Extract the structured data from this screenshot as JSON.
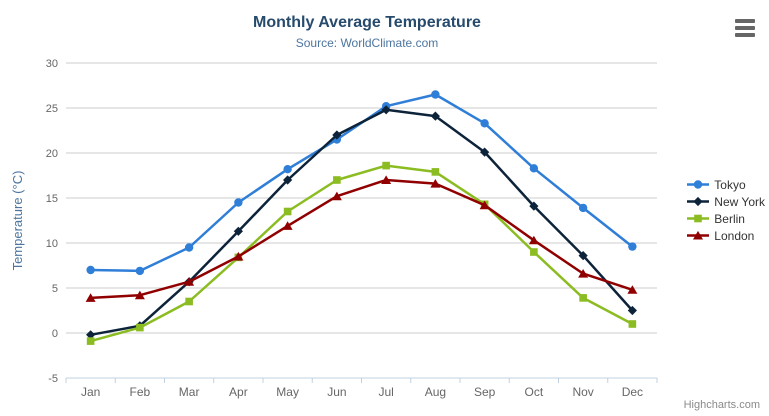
{
  "chart_data": {
    "type": "line",
    "title": "Monthly Average Temperature",
    "subtitle": "Source: WorldClimate.com",
    "xlabel": "",
    "ylabel": "Temperature (°C)",
    "ylim": [
      -5,
      30
    ],
    "tick_interval": 5,
    "grid": true,
    "legend_position": "right",
    "categories": [
      "Jan",
      "Feb",
      "Mar",
      "Apr",
      "May",
      "Jun",
      "Jul",
      "Aug",
      "Sep",
      "Oct",
      "Nov",
      "Dec"
    ],
    "series": [
      {
        "name": "Tokyo",
        "color": "#2f7ed8",
        "marker": "circle",
        "values": [
          7.0,
          6.9,
          9.5,
          14.5,
          18.2,
          21.5,
          25.2,
          26.5,
          23.3,
          18.3,
          13.9,
          9.6
        ]
      },
      {
        "name": "New York",
        "color": "#0d233a",
        "marker": "diamond",
        "values": [
          -0.2,
          0.8,
          5.7,
          11.3,
          17.0,
          22.0,
          24.8,
          24.1,
          20.1,
          14.1,
          8.6,
          2.5
        ]
      },
      {
        "name": "Berlin",
        "color": "#8bbc21",
        "marker": "square",
        "values": [
          -0.9,
          0.6,
          3.5,
          8.4,
          13.5,
          17.0,
          18.6,
          17.9,
          14.3,
          9.0,
          3.9,
          1.0
        ]
      },
      {
        "name": "London",
        "color": "#910000",
        "marker": "triangle",
        "values": [
          3.9,
          4.2,
          5.7,
          8.5,
          11.9,
          15.2,
          17.0,
          16.6,
          14.2,
          10.3,
          6.6,
          4.8
        ]
      }
    ]
  },
  "credits": {
    "text": "Highcharts.com"
  },
  "icons": {
    "export_menu": "hamburger-icon"
  },
  "colors": {
    "background": "#ffffff",
    "title": "#274b6d",
    "subtitle": "#4d759e",
    "axis_title": "#4d759e",
    "axis_label": "#666666",
    "grid_line": "#cccccc",
    "axis_line": "#c0d0e0",
    "legend_text": "#333333",
    "credits": "#8a8a8a",
    "export_icon": "#666666"
  }
}
